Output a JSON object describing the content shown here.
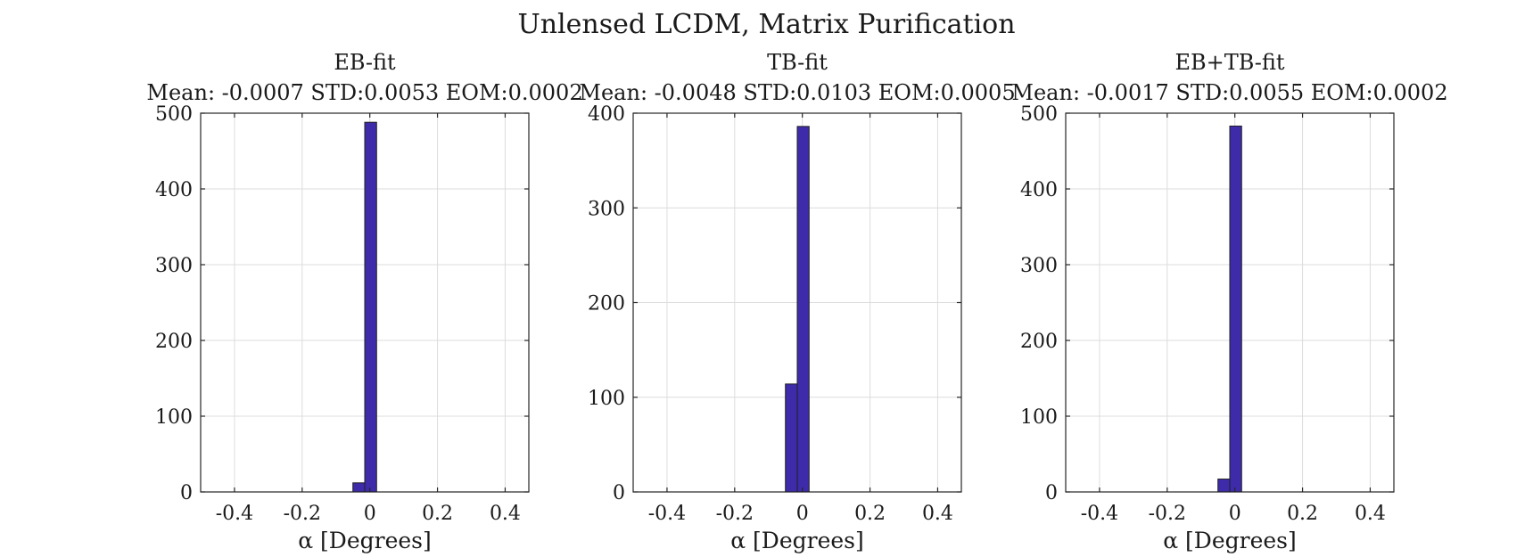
{
  "figure": {
    "title": "Unlensed LCDM, Matrix Purification"
  },
  "colors": {
    "bar_fill": "#3e2baa",
    "bar_edge": "#1f1f1f",
    "grid": "#dcdcdc",
    "axis": "#262626"
  },
  "chart_data": [
    {
      "type": "bar",
      "title": "EB-fit",
      "subtitle": "Mean: -0.0007 STD:0.0053 EOM:0.0002",
      "xlabel": "α [Degrees]",
      "ylabel": "",
      "xlim": [
        -0.5,
        0.47
      ],
      "ylim": [
        0,
        500
      ],
      "xticks": [
        -0.4,
        -0.2,
        0,
        0.2,
        0.4
      ],
      "xtick_labels": [
        "-0.4",
        "-0.2",
        "0",
        "0.2",
        "0.4"
      ],
      "yticks": [
        0,
        100,
        200,
        300,
        400,
        500
      ],
      "ytick_labels": [
        "0",
        "100",
        "200",
        "300",
        "400",
        "500"
      ],
      "grid": true,
      "bin_width": 0.035,
      "bins": [
        {
          "center": -0.0325,
          "value": 12
        },
        {
          "center": 0.0025,
          "value": 488
        }
      ]
    },
    {
      "type": "bar",
      "title": "TB-fit",
      "subtitle": "Mean: -0.0048 STD:0.0103 EOM:0.0005",
      "xlabel": "α [Degrees]",
      "ylabel": "",
      "xlim": [
        -0.5,
        0.47
      ],
      "ylim": [
        0,
        400
      ],
      "xticks": [
        -0.4,
        -0.2,
        0,
        0.2,
        0.4
      ],
      "xtick_labels": [
        "-0.4",
        "-0.2",
        "0",
        "0.2",
        "0.4"
      ],
      "yticks": [
        0,
        100,
        200,
        300,
        400
      ],
      "ytick_labels": [
        "0",
        "100",
        "200",
        "300",
        "400"
      ],
      "grid": true,
      "bin_width": 0.035,
      "bins": [
        {
          "center": -0.0325,
          "value": 114
        },
        {
          "center": 0.0025,
          "value": 386
        }
      ]
    },
    {
      "type": "bar",
      "title": "EB+TB-fit",
      "subtitle": "Mean: -0.0017 STD:0.0055 EOM:0.0002",
      "xlabel": "α [Degrees]",
      "ylabel": "",
      "xlim": [
        -0.5,
        0.47
      ],
      "ylim": [
        0,
        500
      ],
      "xticks": [
        -0.4,
        -0.2,
        0,
        0.2,
        0.4
      ],
      "xtick_labels": [
        "-0.4",
        "-0.2",
        "0",
        "0.2",
        "0.4"
      ],
      "yticks": [
        0,
        100,
        200,
        300,
        400,
        500
      ],
      "ytick_labels": [
        "0",
        "100",
        "200",
        "300",
        "400",
        "500"
      ],
      "grid": true,
      "bin_width": 0.035,
      "bins": [
        {
          "center": -0.0325,
          "value": 17
        },
        {
          "center": 0.0025,
          "value": 483
        }
      ]
    }
  ]
}
